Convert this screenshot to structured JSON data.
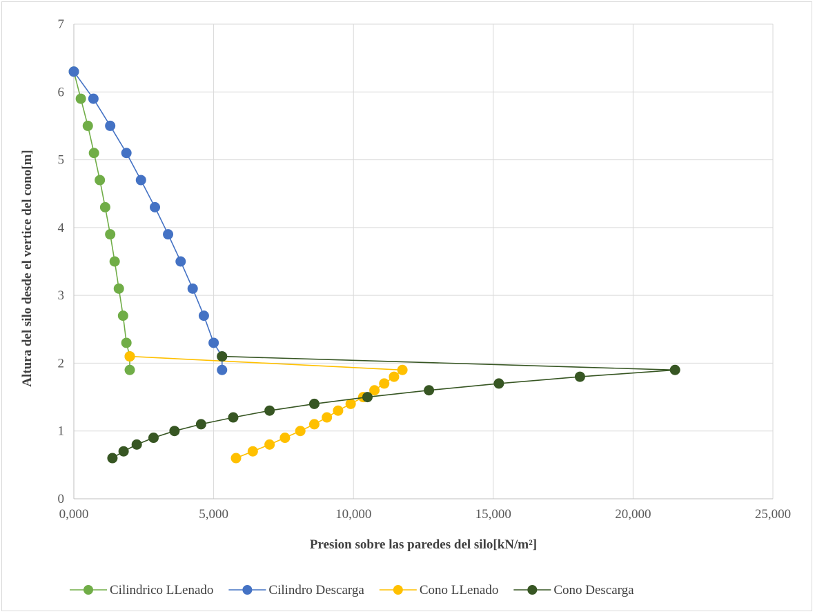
{
  "chart_data": {
    "type": "scatter",
    "title": "",
    "xlabel": "Presion sobre las paredes del silo[kN/m²]",
    "ylabel": "Altura del silo desde el vertice del cono[m]",
    "xlim": [
      0,
      25000
    ],
    "ylim": [
      0,
      7
    ],
    "x_ticks": [
      0,
      5000,
      10000,
      15000,
      20000,
      25000
    ],
    "x_tick_labels": [
      "0,000",
      "5,000",
      "10,000",
      "15,000",
      "20,000",
      "25,000"
    ],
    "y_ticks": [
      0,
      1,
      2,
      3,
      4,
      5,
      6,
      7
    ],
    "y_tick_labels": [
      "0",
      "1",
      "2",
      "3",
      "4",
      "5",
      "6",
      "7"
    ],
    "grid": true,
    "legend_position": "bottom",
    "series": [
      {
        "name": "Cilindrico LLenado",
        "color": "#70ad47",
        "x": [
          0,
          250,
          500,
          720,
          930,
          1120,
          1300,
          1460,
          1610,
          1760,
          1880,
          2000,
          2000
        ],
        "y": [
          6.3,
          5.9,
          5.5,
          5.1,
          4.7,
          4.3,
          3.9,
          3.5,
          3.1,
          2.7,
          2.3,
          2.1,
          1.9
        ]
      },
      {
        "name": "Cilindro Descarga",
        "color": "#4472c4",
        "x": [
          0,
          700,
          1300,
          1880,
          2400,
          2900,
          3370,
          3820,
          4250,
          4650,
          5000,
          5300,
          5300
        ],
        "y": [
          6.3,
          5.9,
          5.5,
          5.1,
          4.7,
          4.3,
          3.9,
          3.5,
          3.1,
          2.7,
          2.3,
          2.1,
          1.9
        ]
      },
      {
        "name": "Cono LLenado",
        "color": "#ffc000",
        "x": [
          2000,
          11750,
          11450,
          11100,
          10750,
          10350,
          9900,
          9450,
          9050,
          8600,
          8100,
          7550,
          7000,
          6400,
          5800
        ],
        "y": [
          2.1,
          1.9,
          1.8,
          1.7,
          1.6,
          1.5,
          1.4,
          1.3,
          1.2,
          1.1,
          1.0,
          0.9,
          0.8,
          0.7,
          0.6
        ]
      },
      {
        "name": "Cono Descarga",
        "color": "#375623",
        "x": [
          5300,
          21500,
          18100,
          15200,
          12700,
          10500,
          8600,
          7000,
          5700,
          4550,
          3600,
          2850,
          2250,
          1780,
          1380
        ],
        "y": [
          2.1,
          1.9,
          1.8,
          1.7,
          1.6,
          1.5,
          1.4,
          1.3,
          1.2,
          1.1,
          1.0,
          0.9,
          0.8,
          0.7,
          0.6
        ]
      }
    ]
  }
}
